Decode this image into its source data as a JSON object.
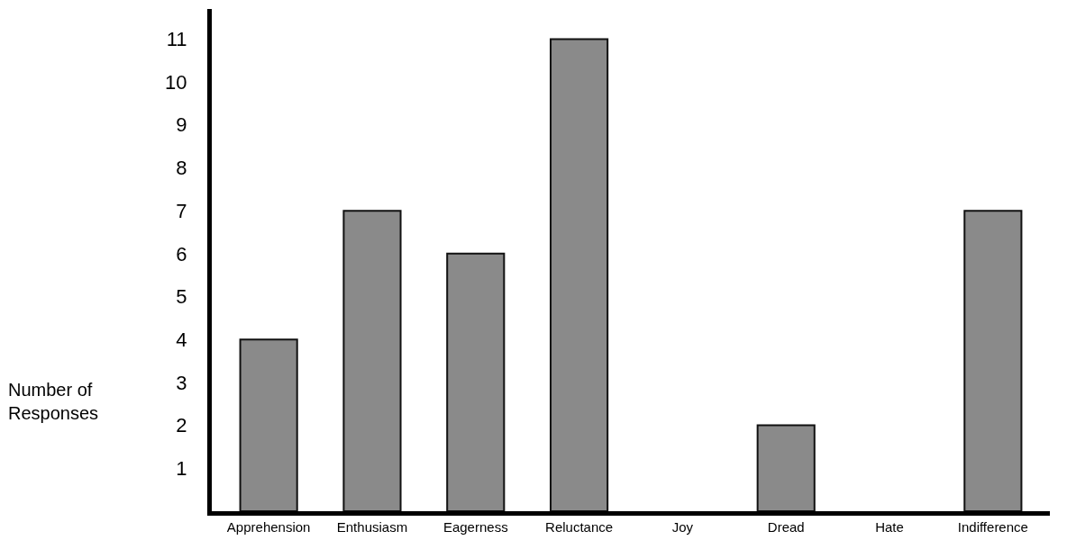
{
  "chart_data": {
    "type": "bar",
    "ylabel": "Number of Responses",
    "categories": [
      "Apprehension",
      "Enthusiasm",
      "Eagerness",
      "Reluctance",
      "Joy",
      "Dread",
      "Hate",
      "Indifference"
    ],
    "values": [
      4,
      7,
      6,
      11,
      0,
      2,
      0,
      7
    ],
    "color": "#8a8a8a",
    "ylim": [
      0,
      11.7
    ],
    "yticks": [
      1,
      2,
      3,
      4,
      5,
      6,
      7,
      8,
      9,
      10,
      11
    ],
    "grid": false,
    "legend": false
  }
}
